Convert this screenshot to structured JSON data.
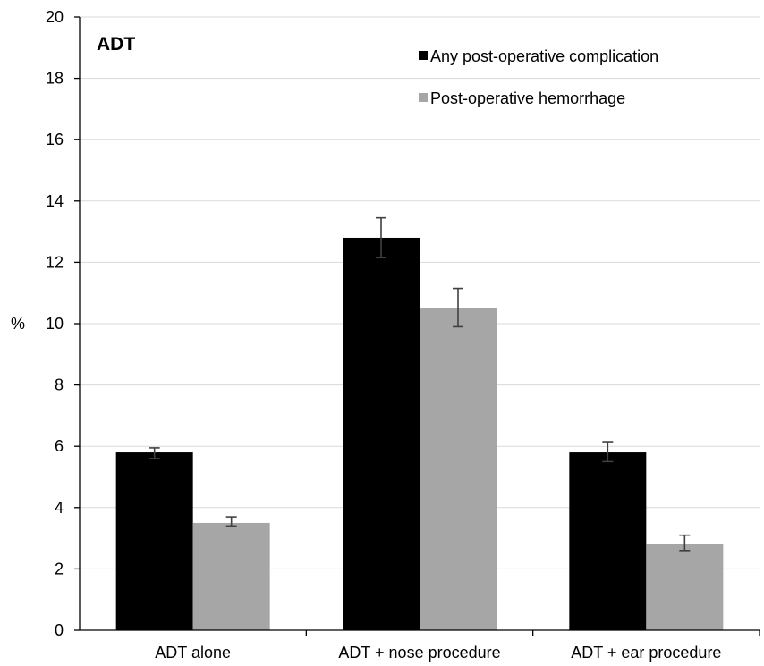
{
  "chart_data": {
    "type": "bar",
    "title": "ADT",
    "xlabel": "",
    "ylabel": "%",
    "ylim": [
      0,
      20
    ],
    "yticks": [
      0,
      2,
      4,
      6,
      8,
      10,
      12,
      14,
      16,
      18,
      20
    ],
    "categories": [
      "ADT alone",
      "ADT + nose procedure",
      "ADT + ear procedure"
    ],
    "series": [
      {
        "name": "Any post-operative complication",
        "color": "#000000",
        "values": [
          5.8,
          12.8,
          5.8
        ],
        "error_low": [
          5.6,
          12.15,
          5.5
        ],
        "error_high": [
          5.95,
          13.45,
          6.15
        ]
      },
      {
        "name": "Post-operative hemorrhage",
        "color": "#a6a6a6",
        "values": [
          3.5,
          10.5,
          2.8
        ],
        "error_low": [
          3.4,
          9.9,
          2.6
        ],
        "error_high": [
          3.7,
          11.15,
          3.1
        ]
      }
    ],
    "grid": true,
    "legend_position": "top-right"
  }
}
